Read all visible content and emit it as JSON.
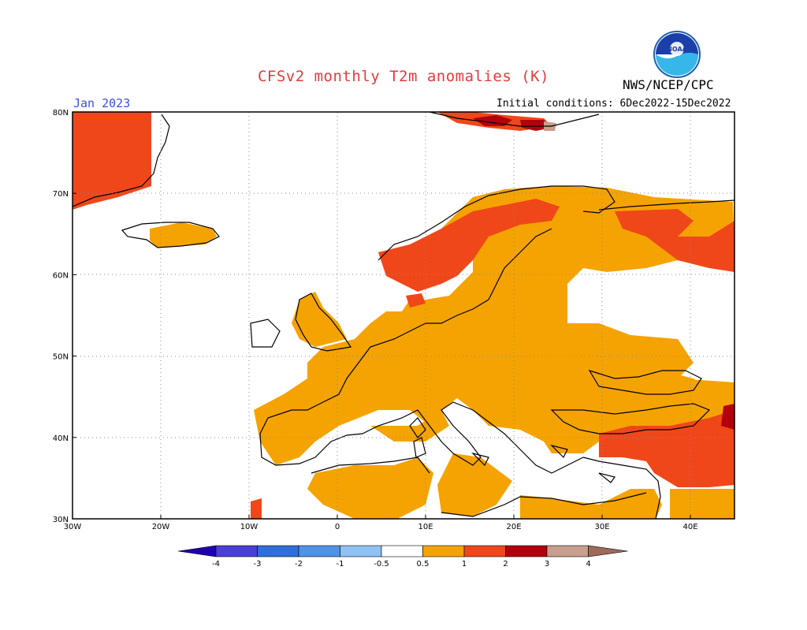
{
  "header": {
    "title": "CFSv2 monthly T2m anomalies (K)",
    "title_color": "#e33b3b",
    "organization": "NWS/NCEP/CPC",
    "logo_text": "NOAA",
    "month": "Jan 2023",
    "month_color": "#3b4fe3",
    "initial_conditions": "Initial conditions: 6Dec2022-15Dec2022"
  },
  "map": {
    "region": "Europe",
    "lon_labels": [
      "30W",
      "20W",
      "10W",
      "0",
      "10E",
      "20E",
      "30E",
      "40E"
    ],
    "lat_labels": [
      "80N",
      "70N",
      "60N",
      "50N",
      "40N",
      "30N"
    ],
    "lon_range": [
      -30,
      45
    ],
    "lat_range": [
      30,
      80
    ],
    "gridlines": "dotted"
  },
  "colorbar": {
    "labels": [
      "-4",
      "-3",
      "-2",
      "-1",
      "-0.5",
      "0.5",
      "1",
      "2",
      "3",
      "4"
    ],
    "colors": [
      "#1e00b3",
      "#4a3fd6",
      "#2f6fdd",
      "#4f93e8",
      "#8ec2f4",
      "#ffffff",
      "#f5a300",
      "#f0471a",
      "#b3000c",
      "#c89e8c",
      "#9e6b5b"
    ],
    "classes": [
      {
        "range": "<-4",
        "color": "#1e00b3"
      },
      {
        "range": "-4 to -3",
        "color": "#4a3fd6"
      },
      {
        "range": "-3 to -2",
        "color": "#2f6fdd"
      },
      {
        "range": "-2 to -1",
        "color": "#4f93e8"
      },
      {
        "range": "-1 to -0.5",
        "color": "#8ec2f4"
      },
      {
        "range": "-0.5 to 0.5",
        "color": "#ffffff"
      },
      {
        "range": "0.5 to 1",
        "color": "#f5a300"
      },
      {
        "range": "1 to 2",
        "color": "#f0471a"
      },
      {
        "range": "2 to 3",
        "color": "#b3000c"
      },
      {
        "range": "3 to 4",
        "color": "#c89e8c"
      },
      {
        "range": ">4",
        "color": "#9e6b5b"
      }
    ]
  }
}
